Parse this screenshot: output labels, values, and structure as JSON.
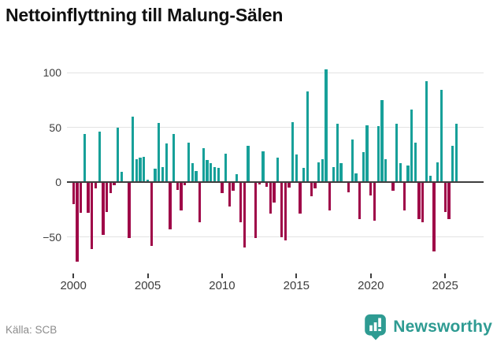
{
  "title": "Nettoinflyttning till Malung-Sälen",
  "source": {
    "label": "Källa: SCB"
  },
  "brand": {
    "name": "Newsworthy"
  },
  "colors": {
    "positive": "#17a099",
    "negative": "#9f0648",
    "grid": "#e3e3e3",
    "zero_line": "#3e3e3e",
    "axis_text": "#3d3d3d",
    "title_text": "#111111",
    "source_text": "#8c8c8c",
    "brand_teal": "#2e9b92"
  },
  "chart_data": {
    "type": "bar",
    "title": "Nettoinflyttning till Malung-Sälen",
    "frequency": "quarterly",
    "start_period": "2000Q1",
    "end_period": "2025Q4",
    "values": [
      -20,
      -73,
      -28,
      44,
      -28,
      -61,
      -6,
      46,
      -48,
      -27,
      -10,
      -3,
      50,
      9,
      0,
      -51,
      60,
      21,
      22,
      23,
      2,
      -58,
      12,
      54,
      14,
      35,
      -43,
      44,
      -7,
      -26,
      -3,
      36,
      17,
      10,
      -37,
      31,
      20,
      17,
      14,
      13,
      -10,
      26,
      -22,
      -8,
      7,
      -37,
      -60,
      33,
      0,
      -51,
      -2,
      28,
      -4,
      -29,
      -19,
      22,
      -50,
      -53,
      -5,
      55,
      25,
      -29,
      13,
      83,
      -13,
      -6,
      18,
      21,
      103,
      -26,
      14,
      53,
      17,
      0,
      -9,
      39,
      8,
      -34,
      27,
      52,
      -12,
      -35,
      51,
      75,
      21,
      0,
      -8,
      53,
      17,
      -26,
      15,
      66,
      36,
      -34,
      -37,
      92,
      6,
      -63,
      18,
      84,
      -27,
      -34,
      33,
      53
    ],
    "y_ticks": [
      {
        "value": 100,
        "label": "100"
      },
      {
        "value": 50,
        "label": "50"
      },
      {
        "value": 0,
        "label": "0"
      },
      {
        "value": -50,
        "label": "−50"
      }
    ],
    "x_ticks": [
      {
        "year": 2000,
        "label": "2000"
      },
      {
        "year": 2005,
        "label": "2005"
      },
      {
        "year": 2010,
        "label": "2010"
      },
      {
        "year": 2015,
        "label": "2015"
      },
      {
        "year": 2020,
        "label": "2020"
      },
      {
        "year": 2025,
        "label": "2025"
      }
    ],
    "ylim": [
      -80,
      112
    ],
    "grid": "horizontal",
    "legend": "none",
    "positive_color": "#17a099",
    "negative_color": "#9f0648"
  }
}
